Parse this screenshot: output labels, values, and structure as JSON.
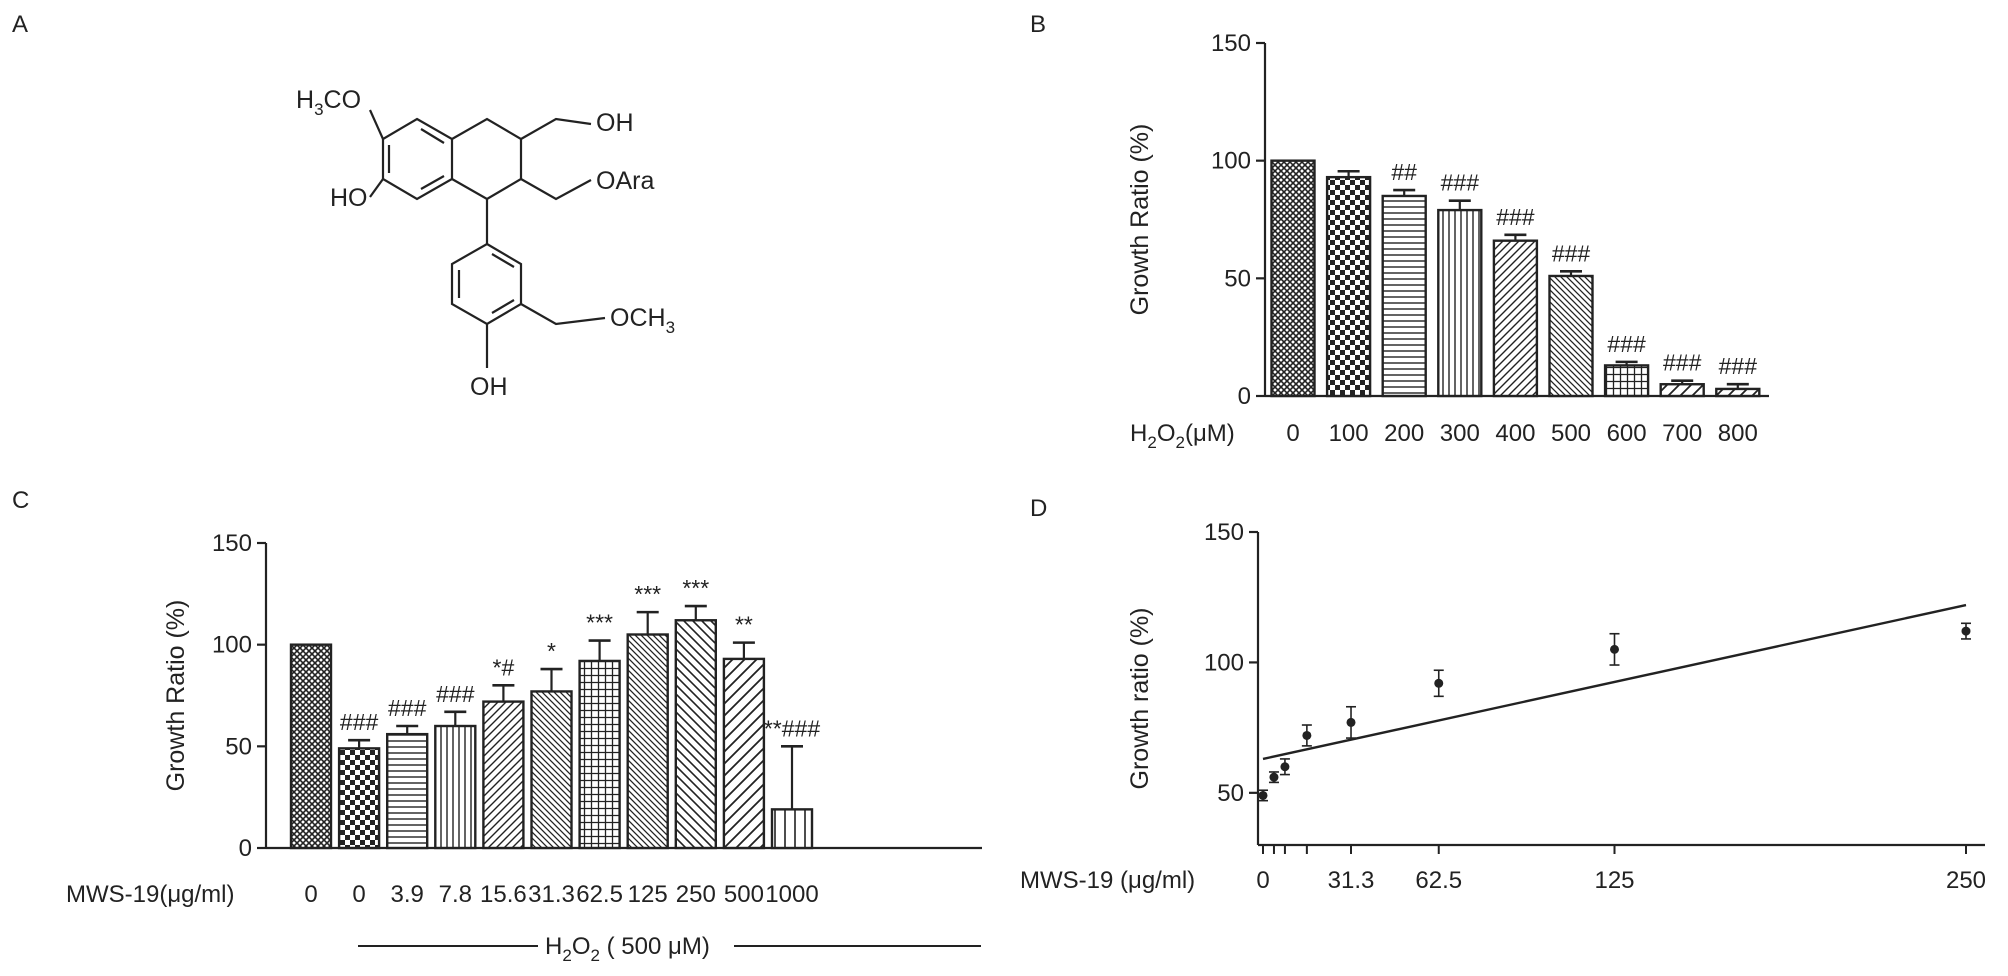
{
  "panels": {
    "A": {
      "letter": "A",
      "structure": {
        "h3co": {
          "main": "H",
          "sub": "3",
          "rest": "CO"
        },
        "ho_ring": "HO",
        "oh_top": "OH",
        "oara": "OAra",
        "och3": {
          "main": "OCH",
          "sub": "3"
        },
        "oh_bottom": "OH"
      }
    },
    "B": {
      "letter": "B",
      "xaxis_label": {
        "main": "H",
        "sub1": "2",
        "mid": "O",
        "sub2": "2",
        "rest": "(μM)"
      }
    },
    "C": {
      "letter": "C",
      "xaxis_label": "MWS-19(μg/ml)",
      "group_label": {
        "main": "H",
        "sub1": "2",
        "mid": "O",
        "sub2": "2",
        "rest": " ( 500 μM)"
      }
    },
    "D": {
      "letter": "D",
      "xaxis_label": "MWS-19 (μg/ml)"
    }
  },
  "chart_data": [
    {
      "panel": "B",
      "type": "bar",
      "ylabel": "Growth Ratio (%)",
      "ylim": [
        0,
        150
      ],
      "yticks": [
        0,
        50,
        100,
        150
      ],
      "categories": [
        "0",
        "100",
        "200",
        "300",
        "400",
        "500",
        "600",
        "700",
        "800"
      ],
      "values": [
        100,
        93,
        85,
        79,
        66,
        51,
        13,
        5,
        3
      ],
      "errors": [
        0,
        2.5,
        2.5,
        4,
        2.5,
        2,
        1.5,
        1.5,
        2
      ],
      "significance": [
        "",
        "",
        "##",
        "###",
        "###",
        "###",
        "###",
        "###",
        "###"
      ],
      "patterns": [
        "cross-hatch-dense",
        "checker",
        "horizontal",
        "vertical",
        "diagonal",
        "diagonal-dense",
        "grid",
        "diagonal-wide",
        "diagonal-wide"
      ]
    },
    {
      "panel": "C",
      "type": "bar",
      "ylabel": "Growth Ratio (%)",
      "ylim": [
        0,
        150
      ],
      "yticks": [
        0,
        50,
        100,
        150
      ],
      "categories": [
        "0",
        "0",
        "3.9",
        "7.8",
        "15.6",
        "31.3",
        "62.5",
        "125",
        "250",
        "500",
        "1000"
      ],
      "values": [
        100,
        49,
        56,
        60,
        72,
        77,
        92,
        105,
        112,
        93,
        19
      ],
      "errors": [
        0,
        4,
        4,
        7,
        8,
        11,
        10,
        11,
        7,
        8,
        31
      ],
      "significance": [
        "",
        "###",
        "###",
        "###",
        "*#",
        "*",
        "***",
        "***",
        "***",
        "**",
        "**###"
      ],
      "patterns": [
        "cross-hatch-dense",
        "checker",
        "horizontal",
        "vertical",
        "diagonal",
        "diagonal-dense",
        "grid",
        "diagonal-dense",
        "diagonal-back",
        "diagonal-wide",
        "vertical-wide"
      ]
    },
    {
      "panel": "D",
      "type": "scatter",
      "ylabel": "Growth ratio (%)",
      "ylim": [
        30,
        150
      ],
      "xlim": [
        0,
        255
      ],
      "yticks": [
        50,
        100,
        150
      ],
      "xticks": [
        0,
        31.3,
        62.5,
        125,
        250
      ],
      "xticklabels": [
        "0",
        "31.3",
        "62.5",
        "125",
        "250"
      ],
      "points": [
        {
          "x": 0,
          "y": 49,
          "err": 2
        },
        {
          "x": 3.9,
          "y": 56,
          "err": 2
        },
        {
          "x": 7.8,
          "y": 60,
          "err": 3
        },
        {
          "x": 15.6,
          "y": 72,
          "err": 4
        },
        {
          "x": 31.3,
          "y": 77,
          "err": 6
        },
        {
          "x": 62.5,
          "y": 92,
          "err": 5
        },
        {
          "x": 125,
          "y": 105,
          "err": 6
        },
        {
          "x": 250,
          "y": 112,
          "err": 3
        }
      ],
      "fit_line": {
        "x": [
          0,
          250
        ],
        "y": [
          63,
          122
        ]
      }
    }
  ]
}
